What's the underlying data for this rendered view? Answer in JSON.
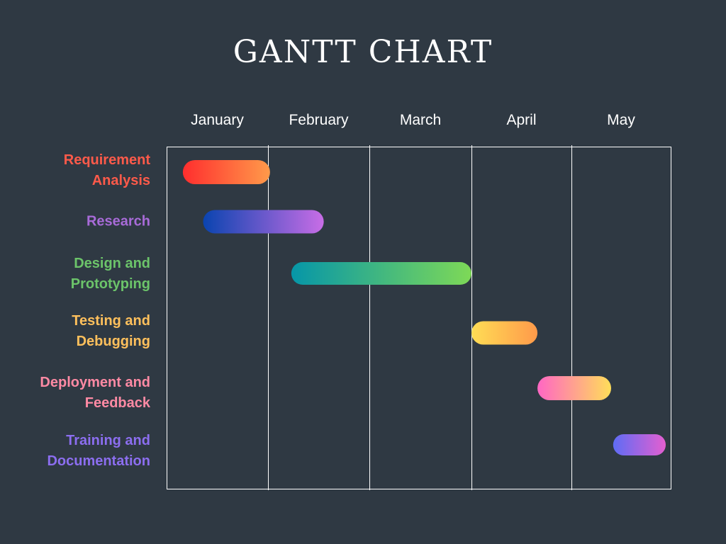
{
  "chart_data": {
    "type": "gantt",
    "title": "GANTT CHART",
    "months": [
      "January",
      "February",
      "March",
      "April",
      "May"
    ],
    "grid": true,
    "tasks": [
      {
        "name": "Requirement Analysis",
        "label_lines": "Requirement\nAnalysis",
        "start": 0.16,
        "end": 1.02,
        "color": "#ff5a4a",
        "gradient": [
          "#ff2e2e",
          "#ff9a4a"
        ]
      },
      {
        "name": "Research",
        "label_lines": "Research",
        "start": 0.36,
        "end": 1.55,
        "color": "#a86bd8",
        "gradient": [
          "#0a44b0",
          "#c86de6"
        ]
      },
      {
        "name": "Design and Prototyping",
        "label_lines": "Design  and\nPrototyping",
        "start": 1.23,
        "end": 3.0,
        "color": "#6cc46a",
        "gradient": [
          "#0696a8",
          "#7ed957"
        ]
      },
      {
        "name": "Testing and Debugging",
        "label_lines": "Testing and\nDebugging",
        "start": 3.0,
        "end": 3.66,
        "color": "#ffc05c",
        "gradient": [
          "#ffdd55",
          "#ff9a4a"
        ]
      },
      {
        "name": "Deployment and Feedback",
        "label_lines": "Deployment and\nFeedback",
        "start": 3.66,
        "end": 4.4,
        "color": "#ff8aa4",
        "gradient": [
          "#ff66c4",
          "#ffde59"
        ]
      },
      {
        "name": "Training and Documentation",
        "label_lines": "Training and\nDocumentation",
        "start": 4.42,
        "end": 4.95,
        "color": "#8c6ef0",
        "gradient": [
          "#5e6cf5",
          "#e45fd0"
        ]
      }
    ]
  }
}
